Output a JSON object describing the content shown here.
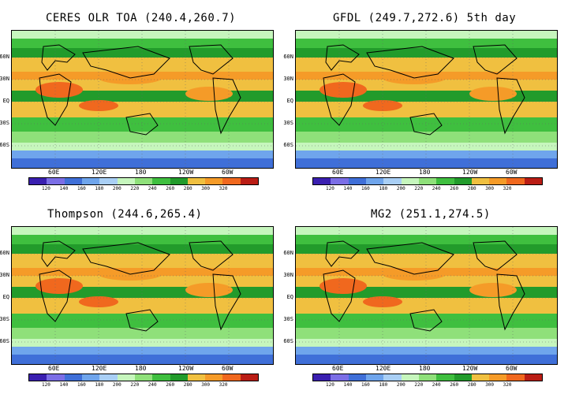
{
  "colorbar": {
    "colors": [
      "#3a1fb0",
      "#7b6ee6",
      "#3f6fd8",
      "#6fa5ec",
      "#a9cff5",
      "#c6f6bd",
      "#8fe07a",
      "#3fbf3f",
      "#229b2b",
      "#f0c040",
      "#f59b28",
      "#f0681e",
      "#ba1d15"
    ],
    "ticks": [
      "120",
      "140",
      "160",
      "180",
      "200",
      "220",
      "240",
      "260",
      "280",
      "300",
      "320"
    ]
  },
  "lat_labels": [
    "60N",
    "30N",
    "EQ",
    "30S",
    "60S"
  ],
  "lon_labels": [
    "60E",
    "120E",
    "180",
    "120W",
    "60W"
  ],
  "panels": [
    {
      "title": "CERES OLR TOA (240.4,260.7)"
    },
    {
      "title": "GFDL (249.7,272.6) 5th day"
    },
    {
      "title": "Thompson (244.6,265.4)"
    },
    {
      "title": "MG2 (251.1,274.5)"
    }
  ]
}
